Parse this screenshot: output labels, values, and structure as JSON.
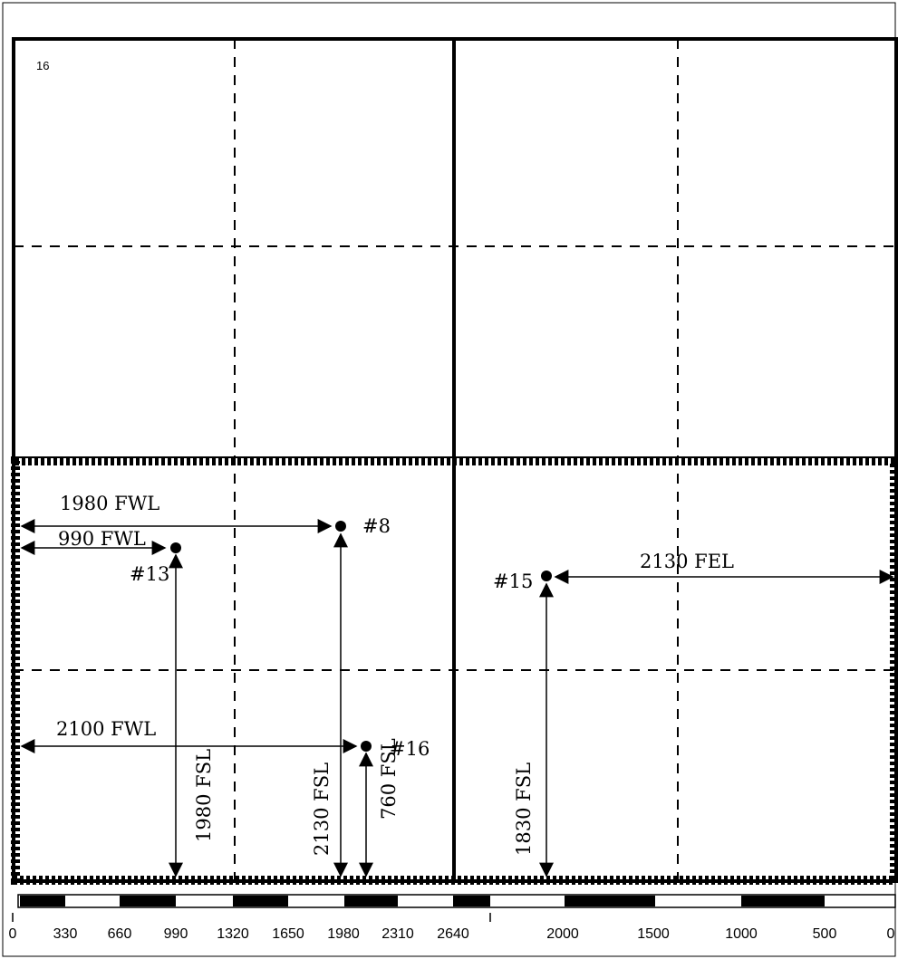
{
  "section_number": "16",
  "wells": [
    {
      "id": "#8",
      "dims": [
        "1980 FWL",
        "2130 FSL"
      ]
    },
    {
      "id": "#13",
      "dims": [
        "990 FWL",
        "1980 FSL"
      ]
    },
    {
      "id": "#15",
      "dims": [
        "2130 FEL",
        "1830 FSL"
      ]
    },
    {
      "id": "#16",
      "dims": [
        "2100 FWL",
        "760 FSL"
      ]
    }
  ],
  "scale_left_labels": [
    "0",
    "330",
    "660",
    "990",
    "1320",
    "1650",
    "1980",
    "2310",
    "2640"
  ],
  "scale_right_labels": [
    "2000",
    "1500",
    "1000",
    "500",
    "0"
  ]
}
